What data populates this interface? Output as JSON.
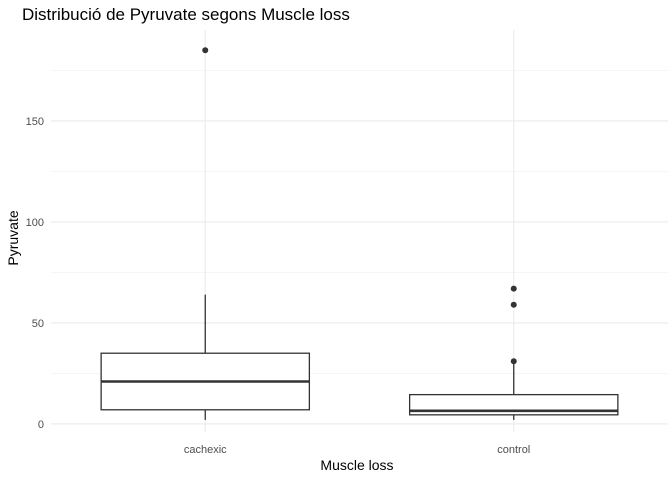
{
  "chart_data": {
    "type": "boxplot",
    "title": "Distribució de Pyruvate segons Muscle loss",
    "xlabel": "Muscle loss",
    "ylabel": "Pyruvate",
    "ylim": [
      -4,
      195
    ],
    "y_ticks": [
      0,
      50,
      100,
      150
    ],
    "y_tick_labels": [
      "0",
      "50",
      "100",
      "150"
    ],
    "grid": true,
    "categories": [
      "cachexic",
      "control"
    ],
    "boxes": [
      {
        "category": "cachexic",
        "min": 2,
        "q1": 7,
        "median": 21,
        "q3": 35,
        "max": 64,
        "outliers": [
          185
        ]
      },
      {
        "category": "control",
        "min": 2,
        "q1": 4.5,
        "median": 6.5,
        "q3": 14.5,
        "max": 30,
        "outliers": [
          31,
          59,
          67
        ]
      }
    ]
  }
}
